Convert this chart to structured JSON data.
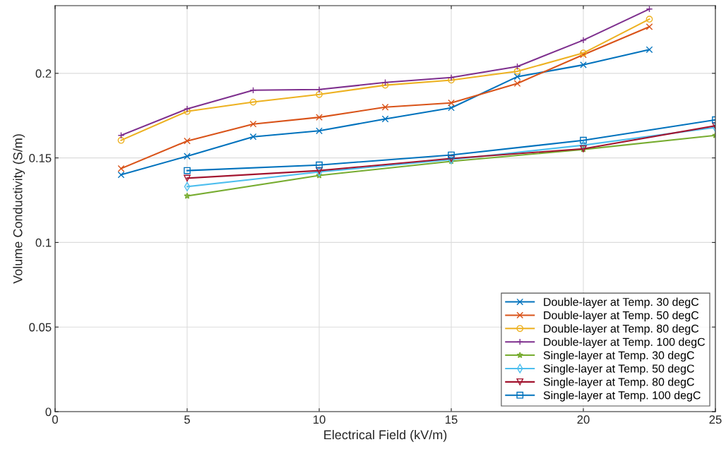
{
  "chart_data": {
    "type": "line",
    "xlabel": "Electrical Field (kV/m)",
    "ylabel": "Volume Conductivity (S/m)",
    "xlim": [
      0,
      25
    ],
    "ylim": [
      0,
      0.24
    ],
    "xticks": [
      0,
      5,
      10,
      15,
      20,
      25
    ],
    "yticks": [
      0,
      0.05,
      0.1,
      0.15,
      0.2
    ],
    "grid": true,
    "legend": "bottom right",
    "series": [
      {
        "name": "Double-layer at Temp. 30 degC",
        "color": "#0072bd",
        "marker": "cross",
        "x": [
          2.5,
          5,
          7.5,
          10,
          12.5,
          15,
          17.5,
          20,
          22.5
        ],
        "values": [
          0.14,
          0.151,
          0.1625,
          0.166,
          0.173,
          0.1796,
          0.198,
          0.205,
          0.214
        ]
      },
      {
        "name": "Double-layer at Temp. 50 degC",
        "color": "#d95319",
        "marker": "cross",
        "x": [
          2.5,
          5,
          7.5,
          10,
          12.5,
          15,
          17.5,
          20,
          22.5
        ],
        "values": [
          0.1437,
          0.16,
          0.17,
          0.174,
          0.18,
          0.1825,
          0.194,
          0.211,
          0.2275
        ]
      },
      {
        "name": "Double-layer at Temp. 80 degC",
        "color": "#edb120",
        "marker": "circle",
        "x": [
          2.5,
          5,
          7.5,
          10,
          12.5,
          15,
          17.5,
          20,
          22.5
        ],
        "values": [
          0.1604,
          0.1775,
          0.183,
          0.1875,
          0.193,
          0.196,
          0.2012,
          0.212,
          0.232
        ]
      },
      {
        "name": "Double-layer at Temp. 100 degC",
        "color": "#7e2f8e",
        "marker": "plus",
        "x": [
          2.5,
          5,
          7.5,
          10,
          12.5,
          15,
          17.5,
          20,
          22.5
        ],
        "values": [
          0.1633,
          0.179,
          0.19,
          0.1904,
          0.1946,
          0.1975,
          0.204,
          0.2196,
          0.238
        ]
      },
      {
        "name": "Single-layer at Temp. 30 degC",
        "color": "#77ac30",
        "marker": "star",
        "x": [
          5,
          10,
          15,
          20,
          25
        ],
        "values": [
          0.1275,
          0.1396,
          0.148,
          0.155,
          0.1633
        ]
      },
      {
        "name": "Single-layer at Temp. 50 degC",
        "color": "#4dbeee",
        "marker": "diamond",
        "x": [
          5,
          10,
          15,
          20,
          25
        ],
        "values": [
          0.133,
          0.1417,
          0.149,
          0.1575,
          0.168
        ]
      },
      {
        "name": "Single-layer at Temp. 80 degC",
        "color": "#a2142f",
        "marker": "triangle_down",
        "x": [
          5,
          10,
          15,
          20,
          25
        ],
        "values": [
          0.138,
          0.1425,
          0.1496,
          0.1554,
          0.169
        ]
      },
      {
        "name": "Single-layer at Temp. 100 degC",
        "color": "#0072bd",
        "marker": "square",
        "x": [
          5,
          10,
          15,
          20,
          25
        ],
        "values": [
          0.1425,
          0.1458,
          0.1517,
          0.1604,
          0.1725
        ]
      }
    ]
  }
}
